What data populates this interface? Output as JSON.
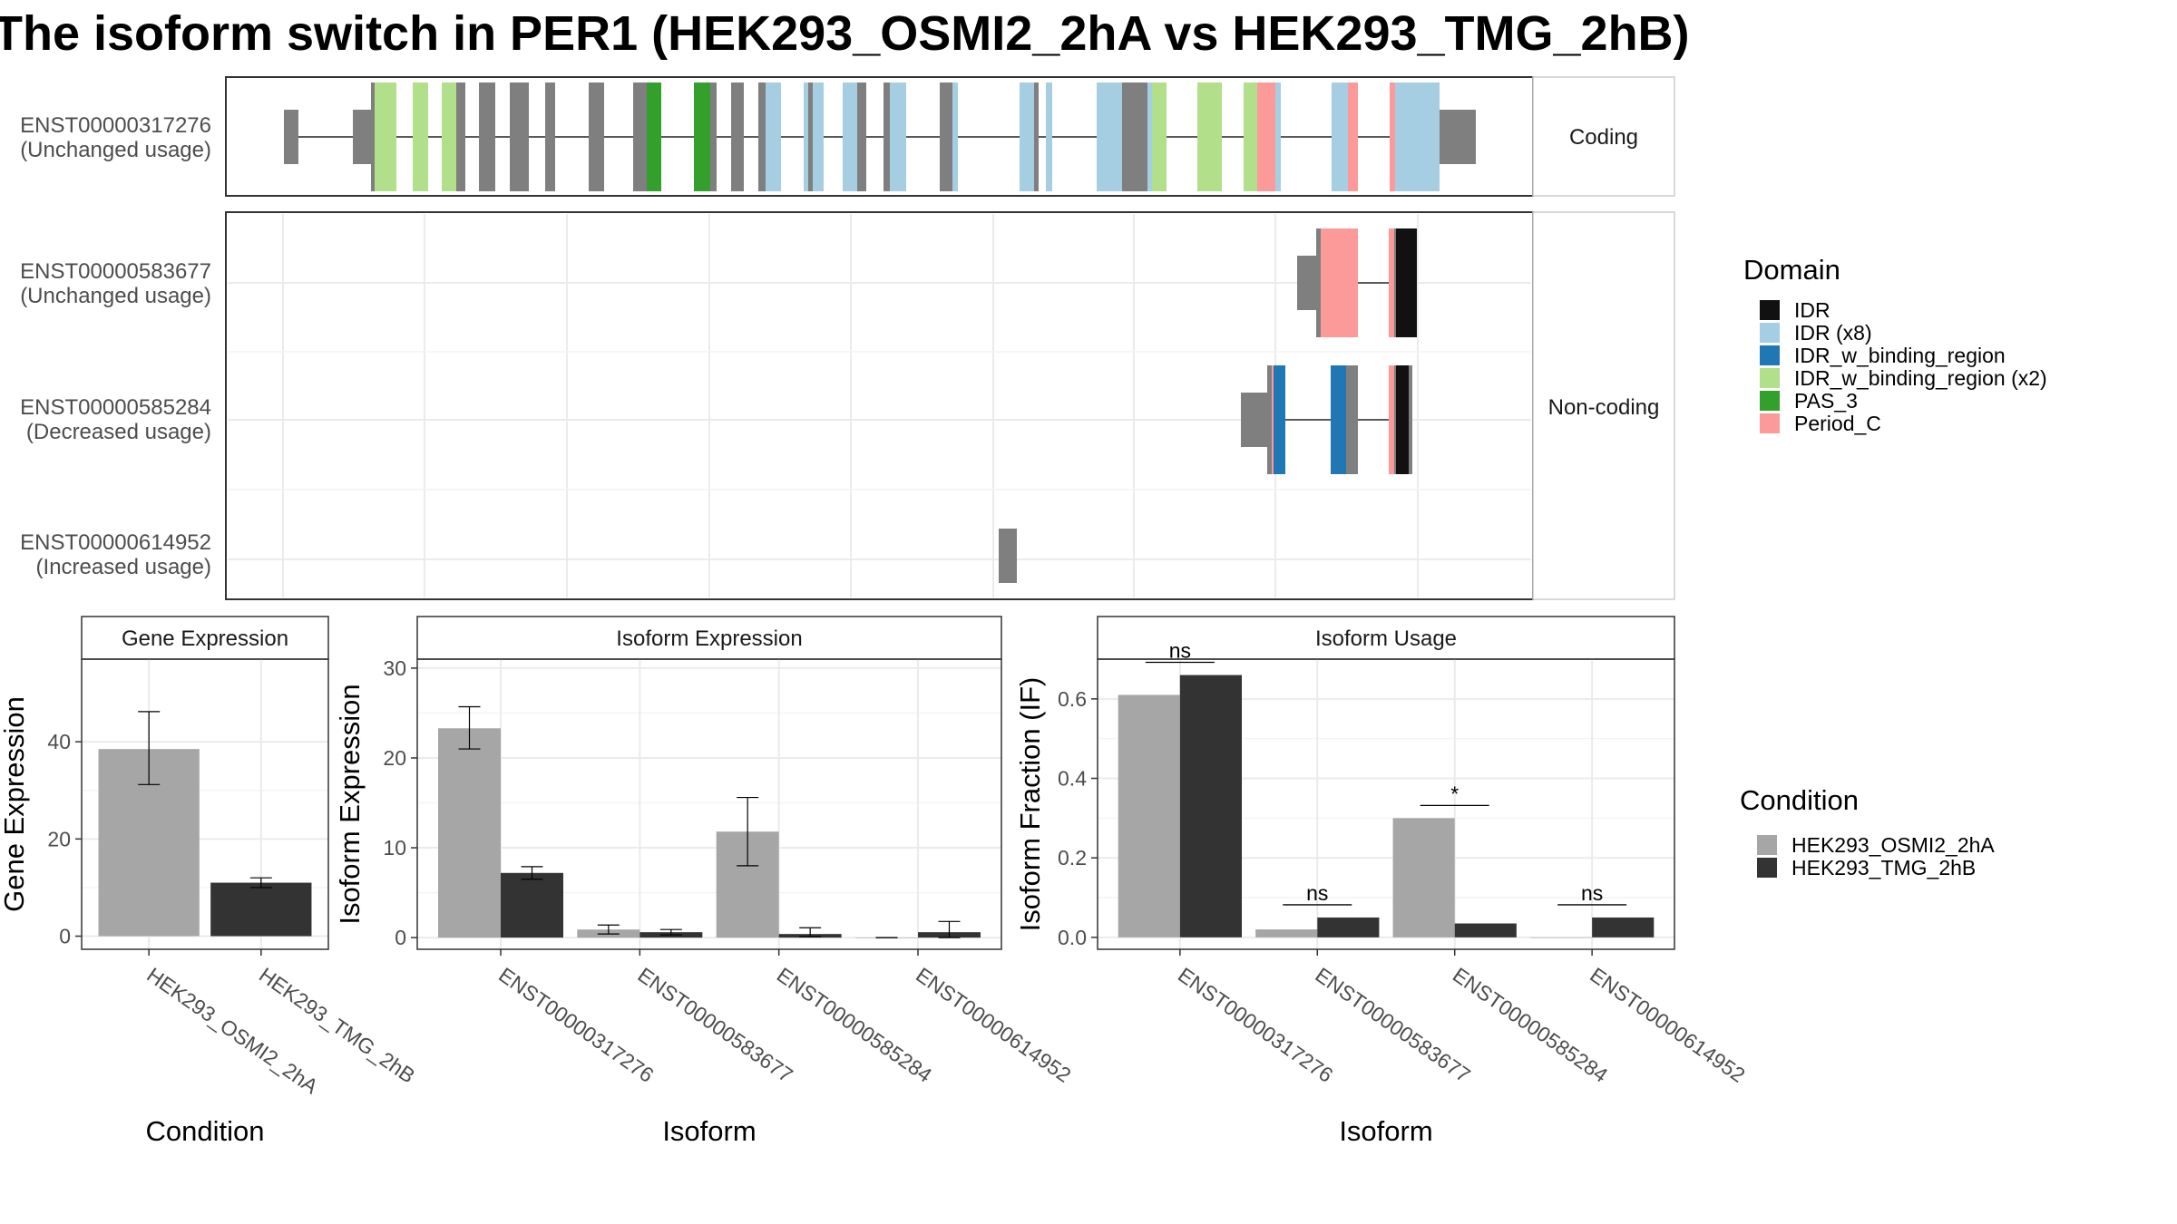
{
  "title": "The isoform switch in PER1 (HEK293_OSMI2_2hA vs HEK293_TMG_2hB)",
  "colors": {
    "exon_default": "#7f7f7f",
    "intron": "#5a5a5a",
    "panel_border": "#333333",
    "grid": "#ebebeb",
    "condition_a": "#a6a6a6",
    "condition_b": "#333333"
  },
  "domain_legend": {
    "title": "Domain",
    "items": [
      {
        "label": "IDR",
        "color": "#111111"
      },
      {
        "label": "IDR (x8)",
        "color": "#a6cee3"
      },
      {
        "label": "IDR_w_binding_region",
        "color": "#1f78b4"
      },
      {
        "label": "IDR_w_binding_region (x2)",
        "color": "#b2df8a"
      },
      {
        "label": "PAS_3",
        "color": "#33a02c"
      },
      {
        "label": "Period_C",
        "color": "#fb9a99"
      }
    ]
  },
  "condition_legend": {
    "title": "Condition",
    "items": [
      {
        "label": "HEK293_OSMI2_2hA",
        "color": "#a6a6a6"
      },
      {
        "label": "HEK293_TMG_2hB",
        "color": "#333333"
      }
    ]
  },
  "transcripts": {
    "coding_strip": "Coding",
    "noncoding_strip": "Non-coding",
    "coding": [
      {
        "id": "ENST00000317276",
        "status": "(Unchanged usage)"
      }
    ],
    "noncoding": [
      {
        "id": "ENST00000583677",
        "status": "(Unchanged usage)"
      },
      {
        "id": "ENST00000585284",
        "status": "(Decreased usage)"
      },
      {
        "id": "ENST00000614952",
        "status": "(Increased usage)"
      }
    ]
  },
  "chart_data": [
    {
      "type": "bar",
      "title": "Gene Expression",
      "xlabel": "Condition",
      "ylabel": "Gene Expression",
      "categories": [
        "HEK293_OSMI2_2hA",
        "HEK293_TMG_2hB"
      ],
      "values": [
        38.5,
        11.0
      ],
      "error_low": [
        31.2,
        10.0
      ],
      "error_high": [
        46.2,
        12.0
      ],
      "ylim": [
        -2.7,
        57
      ],
      "yticks": [
        0,
        20,
        40
      ]
    },
    {
      "type": "bar",
      "title": "Isoform Expression",
      "xlabel": "Isoform",
      "ylabel": "Isoform Expression",
      "categories": [
        "ENST00000317276",
        "ENST00000583677",
        "ENST00000585284",
        "ENST00000614952"
      ],
      "series": [
        {
          "name": "HEK293_OSMI2_2hA",
          "values": [
            23.3,
            0.9,
            11.8,
            0.0
          ],
          "error_low": [
            21.0,
            0.4,
            8.0,
            0.0
          ],
          "error_high": [
            25.7,
            1.4,
            15.6,
            0.0
          ]
        },
        {
          "name": "HEK293_TMG_2hB",
          "values": [
            7.2,
            0.6,
            0.4,
            0.6
          ],
          "error_low": [
            6.5,
            0.3,
            0.1,
            0.0
          ],
          "error_high": [
            7.9,
            0.9,
            1.1,
            1.8
          ]
        }
      ],
      "ylim": [
        -1.3,
        31
      ],
      "yticks": [
        0,
        10,
        20,
        30
      ]
    },
    {
      "type": "bar",
      "title": "Isoform Usage",
      "xlabel": "Isoform",
      "ylabel": "Isoform Fraction (IF)",
      "categories": [
        "ENST00000317276",
        "ENST00000583677",
        "ENST00000585284",
        "ENST00000614952"
      ],
      "series": [
        {
          "name": "HEK293_OSMI2_2hA",
          "values": [
            0.61,
            0.02,
            0.3,
            0.0
          ]
        },
        {
          "name": "HEK293_TMG_2hB",
          "values": [
            0.66,
            0.05,
            0.035,
            0.05
          ]
        }
      ],
      "significance": [
        "ns",
        "ns",
        "*",
        "ns"
      ],
      "ylim": [
        -0.03,
        0.7
      ],
      "yticks": [
        0.0,
        0.2,
        0.4,
        0.6
      ],
      "ytick_labels": [
        "0.0",
        "0.2",
        "0.4",
        "0.6"
      ]
    }
  ]
}
